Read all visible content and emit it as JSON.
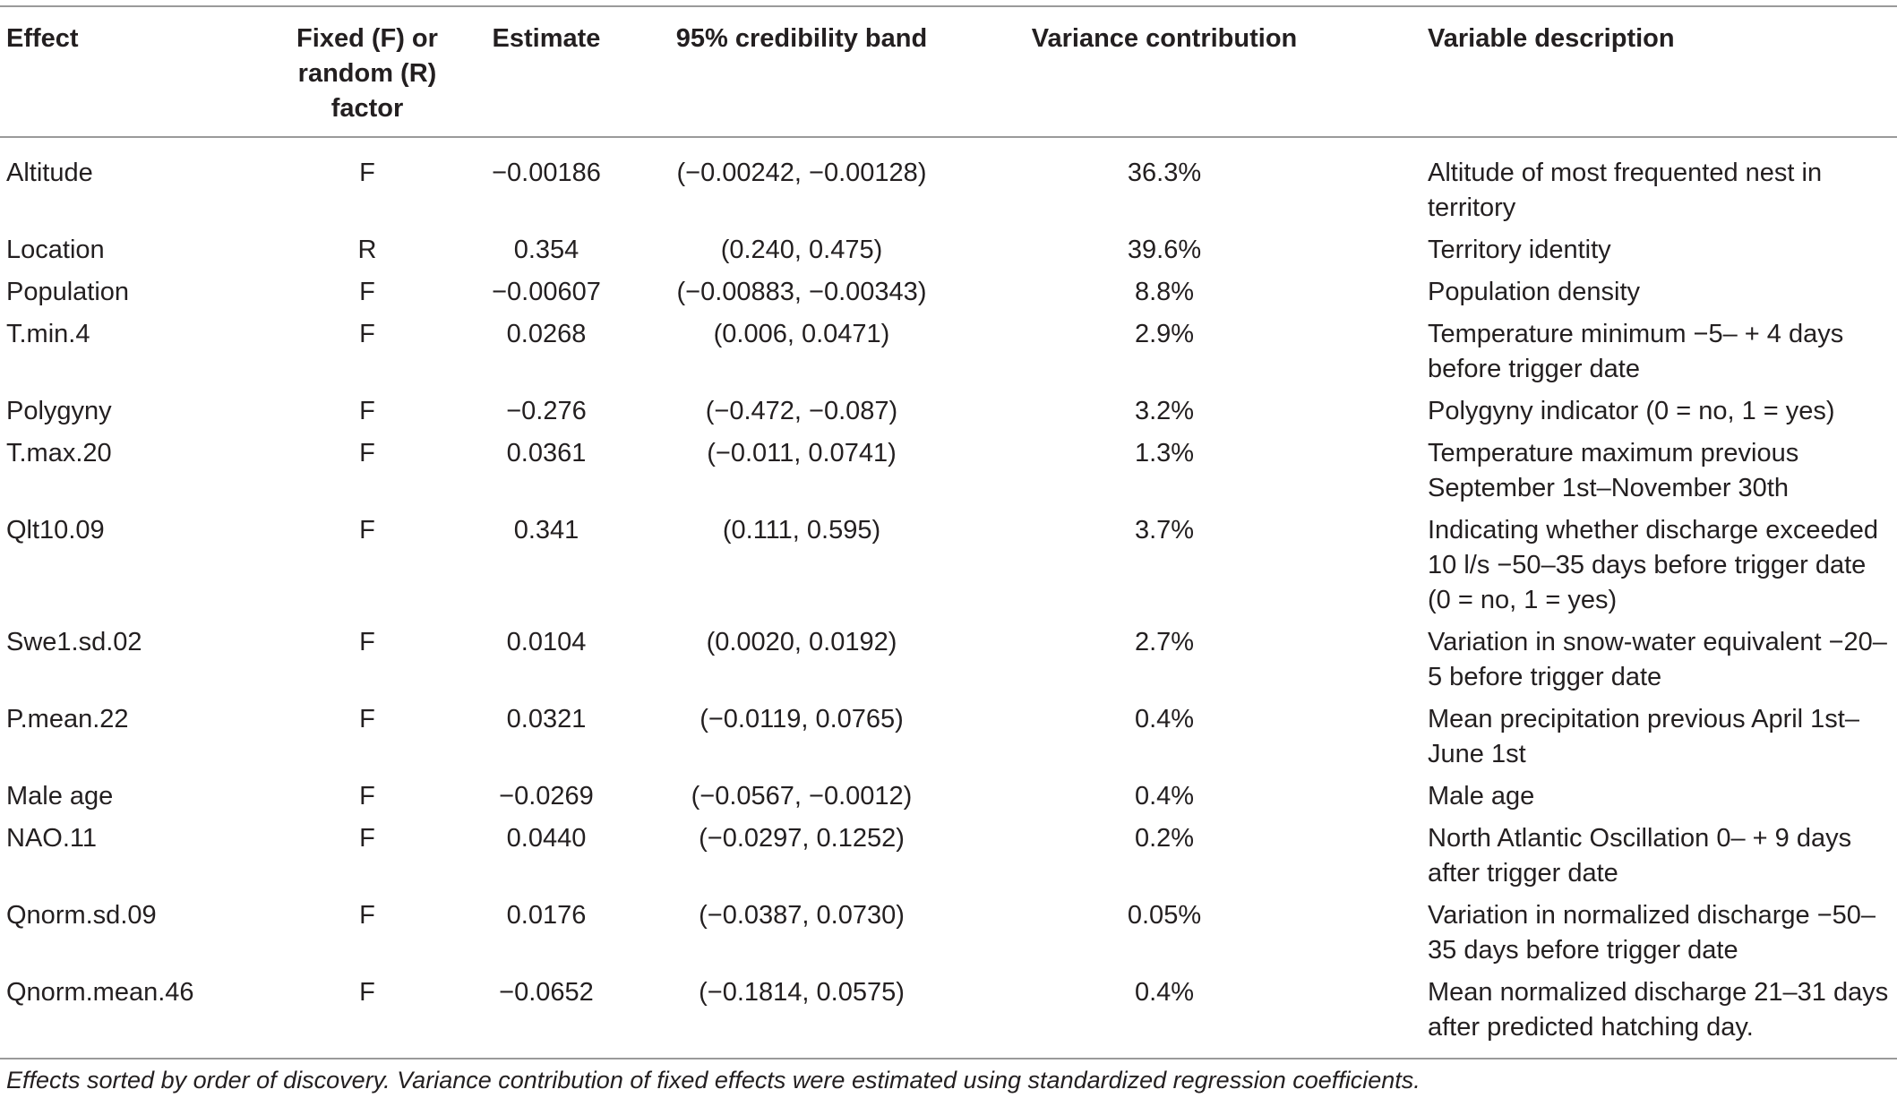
{
  "table": {
    "headers": {
      "effect": "Effect",
      "factor": "Fixed (F) or random (R) factor",
      "estimate": "Estimate",
      "band": "95% credibility band",
      "variance": "Variance contribution",
      "description": "Variable description"
    },
    "rows": [
      {
        "effect": "Altitude",
        "factor": "F",
        "estimate": "−0.00186",
        "band": "(−0.00242, −0.00128)",
        "variance": "36.3%",
        "description": "Altitude of most frequented nest in territory"
      },
      {
        "effect": "Location",
        "factor": "R",
        "estimate": "0.354",
        "band": "(0.240, 0.475)",
        "variance": "39.6%",
        "description": "Territory identity"
      },
      {
        "effect": "Population",
        "factor": "F",
        "estimate": "−0.00607",
        "band": "(−0.00883, −0.00343)",
        "variance": "8.8%",
        "description": "Population density"
      },
      {
        "effect": "T.min.4",
        "factor": "F",
        "estimate": "0.0268",
        "band": "(0.006, 0.0471)",
        "variance": "2.9%",
        "description": "Temperature minimum −5– + 4 days before trigger date"
      },
      {
        "effect": "Polygyny",
        "factor": "F",
        "estimate": "−0.276",
        "band": "(−0.472, −0.087)",
        "variance": "3.2%",
        "description": "Polygyny indicator (0 = no, 1 = yes)"
      },
      {
        "effect": "T.max.20",
        "factor": "F",
        "estimate": "0.0361",
        "band": "(−0.011, 0.0741)",
        "variance": "1.3%",
        "description": "Temperature maximum previous September 1st–November 30th"
      },
      {
        "effect": "Qlt10.09",
        "factor": "F",
        "estimate": "0.341",
        "band": "(0.111, 0.595)",
        "variance": "3.7%",
        "description": "Indicating whether discharge exceeded 10 l/s −50–35 days before trigger date (0 = no, 1 = yes)"
      },
      {
        "effect": "Swe1.sd.02",
        "factor": "F",
        "estimate": "0.0104",
        "band": "(0.0020, 0.0192)",
        "variance": "2.7%",
        "description": "Variation in snow-water equivalent −20–5 before trigger date"
      },
      {
        "effect": "P.mean.22",
        "factor": "F",
        "estimate": "0.0321",
        "band": "(−0.0119, 0.0765)",
        "variance": "0.4%",
        "description": "Mean precipitation previous April 1st–June 1st"
      },
      {
        "effect": "Male age",
        "factor": "F",
        "estimate": "−0.0269",
        "band": "(−0.0567, −0.0012)",
        "variance": "0.4%",
        "description": "Male age"
      },
      {
        "effect": "NAO.11",
        "factor": "F",
        "estimate": "0.0440",
        "band": "(−0.0297, 0.1252)",
        "variance": "0.2%",
        "description": "North Atlantic Oscillation 0– + 9 days after trigger date"
      },
      {
        "effect": "Qnorm.sd.09",
        "factor": "F",
        "estimate": "0.0176",
        "band": "(−0.0387, 0.0730)",
        "variance": "0.05%",
        "description": "Variation in normalized discharge −50–35 days before trigger date"
      },
      {
        "effect": "Qnorm.mean.46",
        "factor": "F",
        "estimate": "−0.0652",
        "band": "(−0.1814, 0.0575)",
        "variance": "0.4%",
        "description": "Mean normalized discharge 21–31 days after predicted hatching day."
      }
    ]
  },
  "footnote": "Effects sorted by order of discovery. Variance contribution of fixed effects were estimated using standardized regression coefficients."
}
